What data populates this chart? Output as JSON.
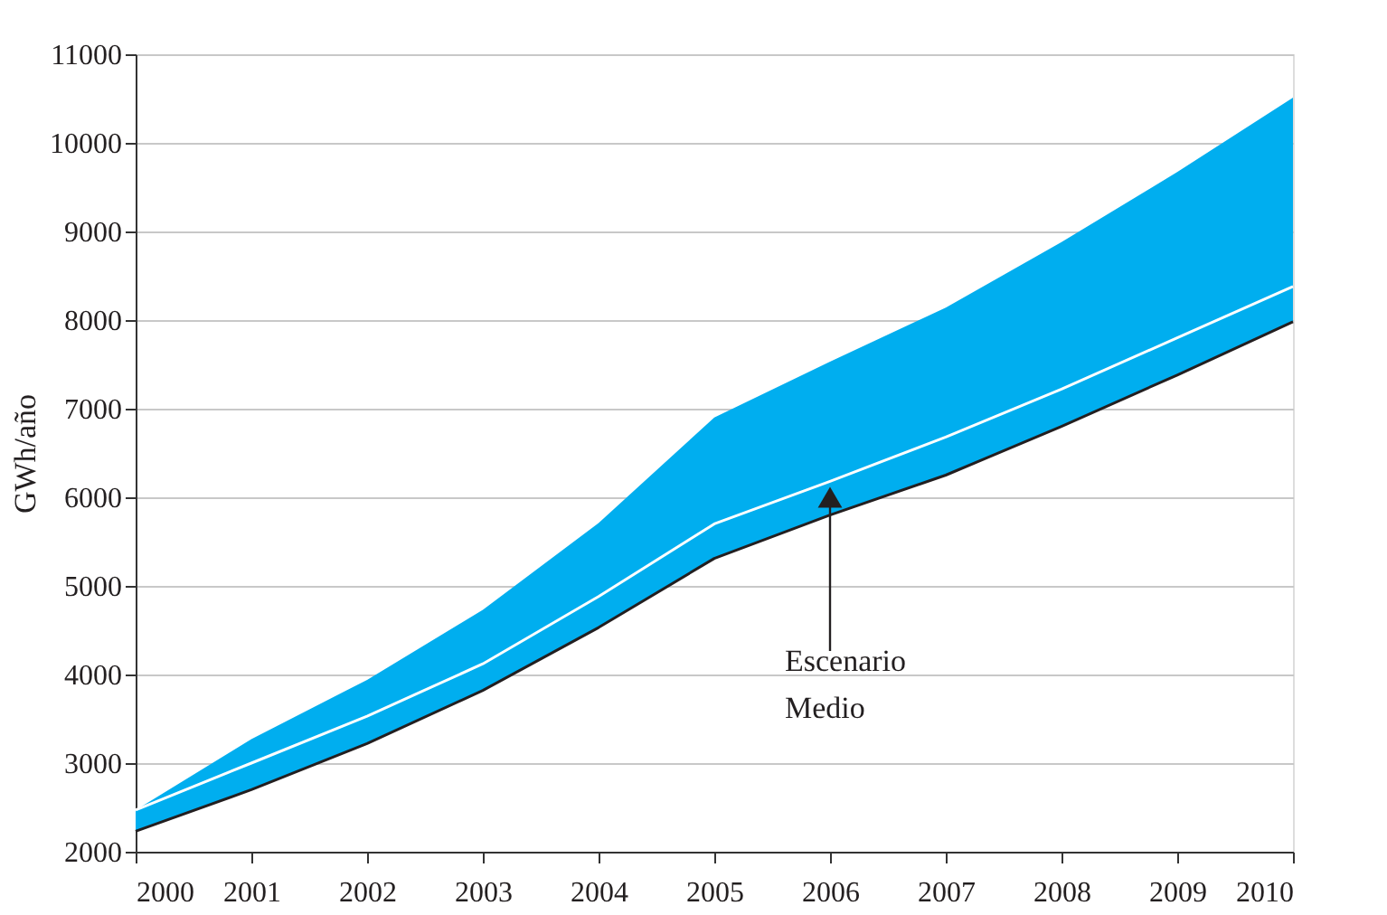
{
  "chart_data": {
    "type": "line",
    "ylabel": "GWh/año",
    "x": [
      2000,
      2001,
      2002,
      2003,
      2004,
      2005,
      2006,
      2007,
      2008,
      2009,
      2010
    ],
    "series": [
      {
        "color": "#ffffff",
        "values": [
          2470,
          3000,
          3530,
          4120,
          4880,
          5700,
          6180,
          6680,
          7220,
          7800,
          8380
        ],
        "lower": [
          2230,
          2700,
          3220,
          3820,
          4530,
          5310,
          5800,
          6250,
          6800,
          7380,
          7980
        ],
        "upper": [
          2470,
          3270,
          3940,
          4730,
          5710,
          6900,
          7530,
          8140,
          8880,
          9670,
          10510
        ]
      },
      {
        "color": "#231f20",
        "values": [
          2230,
          2700,
          3220,
          3820,
          4530,
          5310,
          5800,
          6250,
          6800,
          7380,
          7980
        ]
      }
    ],
    "annotations": [
      {
        "text": "Escenario Medio",
        "x": 2006,
        "y": 6000
      }
    ],
    "xlim": [
      2000,
      2010
    ],
    "xticks": [
      2000,
      2001,
      2002,
      2003,
      2004,
      2005,
      2006,
      2007,
      2008,
      2009,
      2010
    ],
    "ylim": [
      2000,
      11000
    ],
    "yticks": [
      2000,
      3000,
      4000,
      5000,
      6000,
      7000,
      8000,
      9000,
      10000,
      11000
    ],
    "grid": "y"
  }
}
